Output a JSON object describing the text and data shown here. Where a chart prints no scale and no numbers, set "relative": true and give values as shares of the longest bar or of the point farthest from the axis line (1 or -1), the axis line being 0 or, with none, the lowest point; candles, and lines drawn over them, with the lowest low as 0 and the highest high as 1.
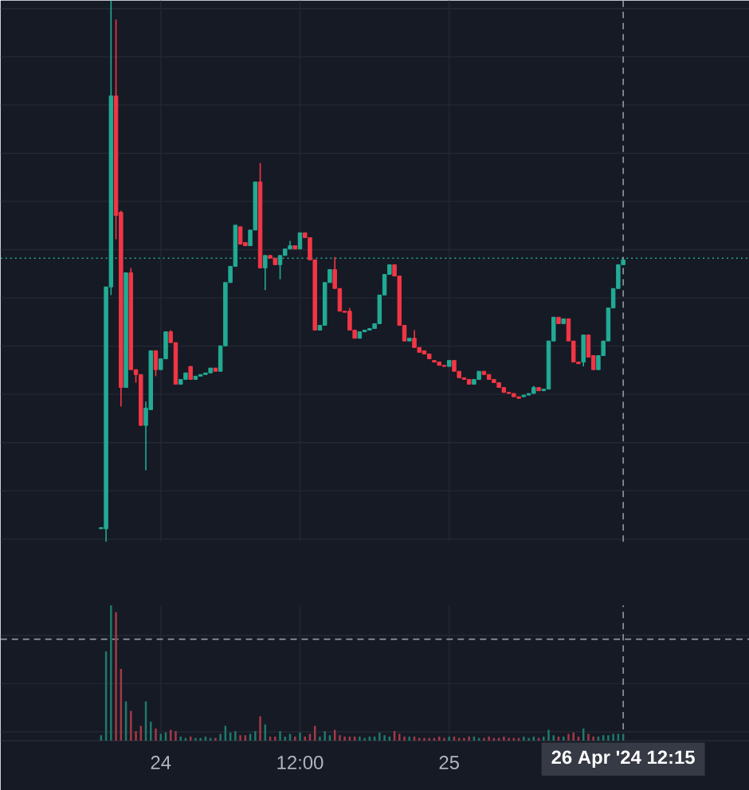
{
  "chart_data": [
    {
      "type": "candlestick",
      "relative": true,
      "tick_labels": false,
      "grid": true,
      "categories": [
        null,
        null,
        null,
        null,
        null,
        null,
        null,
        null,
        null,
        null,
        null,
        null,
        "24",
        null,
        null,
        null,
        null,
        null,
        null,
        null,
        null,
        null,
        null,
        null,
        null,
        null,
        null,
        null,
        null,
        null,
        null,
        null,
        null,
        null,
        null,
        null,
        null,
        null,
        null,
        null,
        "12:00",
        null,
        null,
        null,
        null,
        null,
        null,
        null,
        null,
        null,
        null,
        null,
        null,
        null,
        null,
        null,
        null,
        null,
        null,
        null,
        null,
        null,
        null,
        null,
        null,
        null,
        null,
        null,
        null,
        null,
        "25",
        null,
        null,
        null,
        null,
        null,
        null,
        null,
        null,
        null,
        null,
        null,
        null,
        null,
        null,
        null,
        null,
        null,
        null,
        null,
        null,
        null,
        null,
        null,
        null,
        null,
        null,
        null,
        null,
        null,
        null,
        null,
        null,
        null,
        null,
        "26 Apr '24  12:15"
      ],
      "ref_lines": [
        {
          "axis": "y",
          "value": 0.524,
          "color": "#22ab94",
          "line_style": "dotted"
        },
        {
          "axis": "x",
          "value": "26 Apr '24  12:15",
          "color": "#9598a1",
          "line_style": "dashed"
        }
      ],
      "ohlc": [
        [
          0.024,
          0.026,
          0.024,
          0.026
        ],
        [
          0.024,
          0.471,
          0.0,
          0.471
        ],
        [
          0.471,
          1.0,
          0.456,
          0.824
        ],
        [
          0.824,
          0.965,
          0.559,
          0.603
        ],
        [
          0.609,
          0.612,
          0.25,
          0.285
        ],
        [
          0.285,
          0.497,
          0.285,
          0.497
        ],
        [
          0.497,
          0.506,
          0.318,
          0.318
        ],
        [
          0.318,
          0.318,
          0.294,
          0.309
        ],
        [
          0.309,
          0.309,
          0.215,
          0.215
        ],
        [
          0.215,
          0.259,
          0.132,
          0.247
        ],
        [
          0.244,
          0.353,
          0.244,
          0.353
        ],
        [
          0.353,
          0.353,
          0.306,
          0.318
        ],
        [
          0.318,
          0.338,
          0.318,
          0.338
        ],
        [
          0.338,
          0.388,
          0.338,
          0.388
        ],
        [
          0.388,
          0.391,
          0.368,
          0.368
        ],
        [
          0.368,
          0.368,
          0.291,
          0.291
        ],
        [
          0.291,
          0.3,
          0.291,
          0.3
        ],
        [
          0.3,
          0.312,
          0.3,
          0.312
        ],
        [
          0.324,
          0.324,
          0.3,
          0.3
        ],
        [
          0.3,
          0.306,
          0.3,
          0.306
        ],
        [
          0.306,
          0.309,
          0.306,
          0.309
        ],
        [
          0.309,
          0.312,
          0.309,
          0.312
        ],
        [
          0.312,
          0.321,
          0.312,
          0.321
        ],
        [
          0.321,
          0.321,
          0.315,
          0.315
        ],
        [
          0.315,
          0.362,
          0.315,
          0.362
        ],
        [
          0.362,
          0.479,
          0.362,
          0.479
        ],
        [
          0.479,
          0.509,
          0.479,
          0.509
        ],
        [
          0.509,
          0.585,
          0.509,
          0.585
        ],
        [
          0.582,
          0.582,
          0.55,
          0.55
        ],
        [
          0.553,
          0.553,
          0.547,
          0.547
        ],
        [
          0.547,
          0.576,
          0.547,
          0.576
        ],
        [
          0.576,
          0.665,
          0.576,
          0.665
        ],
        [
          0.665,
          0.7,
          0.506,
          0.506
        ],
        [
          0.506,
          0.529,
          0.465,
          0.529
        ],
        [
          0.529,
          0.529,
          0.524,
          0.524
        ],
        [
          0.524,
          0.524,
          0.512,
          0.512
        ],
        [
          0.512,
          0.529,
          0.485,
          0.529
        ],
        [
          0.529,
          0.541,
          0.529,
          0.541
        ],
        [
          0.541,
          0.556,
          0.541,
          0.547
        ],
        [
          0.547,
          0.547,
          0.541,
          0.541
        ],
        [
          0.541,
          0.571,
          0.541,
          0.571
        ],
        [
          0.571,
          0.571,
          0.562,
          0.562
        ],
        [
          0.562,
          0.562,
          0.521,
          0.521
        ],
        [
          0.521,
          0.521,
          0.391,
          0.391
        ],
        [
          0.391,
          0.4,
          0.391,
          0.4
        ],
        [
          0.4,
          0.479,
          0.4,
          0.479
        ],
        [
          0.479,
          0.503,
          0.479,
          0.503
        ],
        [
          0.503,
          0.526,
          0.468,
          0.468
        ],
        [
          0.468,
          0.468,
          0.426,
          0.426
        ],
        [
          0.426,
          0.426,
          0.424,
          0.424
        ],
        [
          0.426,
          0.432,
          0.391,
          0.391
        ],
        [
          0.391,
          0.391,
          0.376,
          0.376
        ],
        [
          0.376,
          0.388,
          0.376,
          0.388
        ],
        [
          0.388,
          0.391,
          0.388,
          0.391
        ],
        [
          0.391,
          0.394,
          0.391,
          0.394
        ],
        [
          0.394,
          0.403,
          0.394,
          0.403
        ],
        [
          0.403,
          0.456,
          0.403,
          0.456
        ],
        [
          0.456,
          0.494,
          0.456,
          0.494
        ],
        [
          0.494,
          0.512,
          0.494,
          0.512
        ],
        [
          0.512,
          0.512,
          0.491,
          0.491
        ],
        [
          0.491,
          0.491,
          0.4,
          0.4
        ],
        [
          0.4,
          0.4,
          0.371,
          0.371
        ],
        [
          0.371,
          0.376,
          0.371,
          0.376
        ],
        [
          0.376,
          0.391,
          0.359,
          0.359
        ],
        [
          0.359,
          0.359,
          0.35,
          0.35
        ],
        [
          0.353,
          0.353,
          0.347,
          0.347
        ],
        [
          0.347,
          0.347,
          0.338,
          0.338
        ],
        [
          0.335,
          0.335,
          0.332,
          0.332
        ],
        [
          0.332,
          0.332,
          0.326,
          0.326
        ],
        [
          0.326,
          0.326,
          0.324,
          0.324
        ],
        [
          0.324,
          0.335,
          0.324,
          0.335
        ],
        [
          0.335,
          0.335,
          0.315,
          0.315
        ],
        [
          0.315,
          0.315,
          0.303,
          0.303
        ],
        [
          0.303,
          0.303,
          0.3,
          0.3
        ],
        [
          0.3,
          0.3,
          0.291,
          0.291
        ],
        [
          0.291,
          0.3,
          0.291,
          0.3
        ],
        [
          0.3,
          0.315,
          0.3,
          0.315
        ],
        [
          0.315,
          0.315,
          0.309,
          0.309
        ],
        [
          0.309,
          0.309,
          0.3,
          0.3
        ],
        [
          0.3,
          0.3,
          0.294,
          0.294
        ],
        [
          0.294,
          0.294,
          0.285,
          0.285
        ],
        [
          0.285,
          0.285,
          0.276,
          0.276
        ],
        [
          0.276,
          0.276,
          0.274,
          0.274
        ],
        [
          0.274,
          0.274,
          0.268,
          0.268
        ],
        [
          0.268,
          0.268,
          0.265,
          0.265
        ],
        [
          0.268,
          0.271,
          0.268,
          0.271
        ],
        [
          0.271,
          0.274,
          0.271,
          0.274
        ],
        [
          0.274,
          0.288,
          0.274,
          0.285
        ],
        [
          0.285,
          0.285,
          0.279,
          0.279
        ],
        [
          0.279,
          0.282,
          0.279,
          0.282
        ],
        [
          0.282,
          0.371,
          0.282,
          0.371
        ],
        [
          0.371,
          0.415,
          0.371,
          0.415
        ],
        [
          0.415,
          0.415,
          0.403,
          0.403
        ],
        [
          0.403,
          0.412,
          0.403,
          0.412
        ],
        [
          0.412,
          0.412,
          0.371,
          0.371
        ],
        [
          0.371,
          0.371,
          0.332,
          0.332
        ],
        [
          0.332,
          0.332,
          0.329,
          0.329
        ],
        [
          0.332,
          0.382,
          0.324,
          0.382
        ],
        [
          0.382,
          0.382,
          0.341,
          0.341
        ],
        [
          0.344,
          0.344,
          0.318,
          0.318
        ],
        [
          0.318,
          0.344,
          0.318,
          0.344
        ],
        [
          0.344,
          0.371,
          0.344,
          0.371
        ],
        [
          0.371,
          0.432,
          0.371,
          0.432
        ],
        [
          0.432,
          0.468,
          0.432,
          0.468
        ],
        [
          0.468,
          0.512,
          0.468,
          0.512
        ],
        [
          0.512,
          0.521,
          0.512,
          0.521
        ]
      ],
      "colors": [
        "#22ab94",
        "#22ab94",
        "#22ab94",
        "#f23645",
        "#f23645",
        "#22ab94",
        "#f23645",
        "#f23645",
        "#f23645",
        "#22ab94",
        "#22ab94",
        "#f23645",
        "#22ab94",
        "#22ab94",
        "#f23645",
        "#f23645",
        "#22ab94",
        "#22ab94",
        "#f23645",
        "#22ab94",
        "#22ab94",
        "#22ab94",
        "#22ab94",
        "#f23645",
        "#22ab94",
        "#22ab94",
        "#22ab94",
        "#22ab94",
        "#f23645",
        "#f23645",
        "#22ab94",
        "#22ab94",
        "#f23645",
        "#22ab94",
        "#f23645",
        "#f23645",
        "#22ab94",
        "#22ab94",
        "#22ab94",
        "#f23645",
        "#22ab94",
        "#f23645",
        "#f23645",
        "#f23645",
        "#22ab94",
        "#22ab94",
        "#22ab94",
        "#f23645",
        "#f23645",
        "#f23645",
        "#f23645",
        "#f23645",
        "#22ab94",
        "#22ab94",
        "#22ab94",
        "#22ab94",
        "#22ab94",
        "#22ab94",
        "#22ab94",
        "#f23645",
        "#f23645",
        "#f23645",
        "#22ab94",
        "#f23645",
        "#f23645",
        "#f23645",
        "#f23645",
        "#f23645",
        "#f23645",
        "#f23645",
        "#22ab94",
        "#f23645",
        "#f23645",
        "#f23645",
        "#f23645",
        "#22ab94",
        "#22ab94",
        "#f23645",
        "#f23645",
        "#f23645",
        "#f23645",
        "#f23645",
        "#f23645",
        "#f23645",
        "#f23645",
        "#22ab94",
        "#22ab94",
        "#22ab94",
        "#f23645",
        "#22ab94",
        "#22ab94",
        "#22ab94",
        "#f23645",
        "#22ab94",
        "#f23645",
        "#f23645",
        "#f23645",
        "#22ab94",
        "#f23645",
        "#f23645",
        "#22ab94",
        "#22ab94",
        "#22ab94",
        "#22ab94",
        "#22ab94",
        "#22ab94"
      ]
    },
    {
      "type": "bar",
      "relative": true,
      "grid": true,
      "categories": [
        null,
        null,
        null,
        null,
        null,
        null,
        null,
        null,
        null,
        null,
        null,
        null,
        "24",
        null,
        null,
        null,
        null,
        null,
        null,
        null,
        null,
        null,
        null,
        null,
        null,
        null,
        null,
        null,
        null,
        null,
        null,
        null,
        null,
        null,
        null,
        null,
        null,
        null,
        null,
        null,
        "12:00",
        null,
        null,
        null,
        null,
        null,
        null,
        null,
        null,
        null,
        null,
        null,
        null,
        null,
        null,
        null,
        null,
        null,
        null,
        null,
        null,
        null,
        null,
        null,
        null,
        null,
        null,
        null,
        null,
        null,
        "25",
        null,
        null,
        null,
        null,
        null,
        null,
        null,
        null,
        null,
        null,
        null,
        null,
        null,
        null,
        null,
        null,
        null,
        null,
        null,
        null,
        null,
        null,
        null,
        null,
        null,
        null,
        null,
        null,
        null,
        null,
        null,
        null,
        null,
        null,
        "26 Apr '24  12:15"
      ],
      "ref_lines": [
        {
          "axis": "x",
          "value": "26 Apr '24  12:15",
          "color": "#9598a1",
          "line_style": "dashed"
        },
        {
          "axis": "y",
          "value": 0.75,
          "color": "#9598a1",
          "line_style": "dashed"
        }
      ],
      "values": [
        0.04,
        0.66,
        1,
        0.95,
        0.53,
        0.29,
        0.22,
        0.07,
        0.11,
        0.29,
        0.14,
        0.09,
        0.05,
        0.06,
        0.08,
        0.07,
        0.03,
        0.02,
        0.03,
        0.02,
        0.02,
        0.03,
        0.02,
        0.02,
        0.05,
        0.11,
        0.06,
        0.07,
        0.04,
        0.04,
        0.05,
        0.07,
        0.18,
        0.12,
        0.03,
        0.03,
        0.07,
        0.03,
        0.05,
        0.03,
        0.06,
        0.03,
        0.05,
        0.11,
        0.03,
        0.07,
        0.04,
        0.08,
        0.04,
        0.03,
        0.03,
        0.03,
        0.03,
        0.02,
        0.03,
        0.03,
        0.06,
        0.04,
        0.03,
        0.07,
        0.05,
        0.03,
        0.03,
        0.03,
        0.02,
        0.02,
        0.02,
        0.02,
        0.03,
        0.02,
        0.03,
        0.03,
        0.02,
        0.02,
        0.03,
        0.03,
        0.02,
        0.02,
        0.03,
        0.02,
        0.02,
        0.03,
        0.02,
        0.02,
        0.02,
        0.03,
        0.02,
        0.03,
        0.02,
        0.03,
        0.08,
        0.04,
        0.03,
        0.03,
        0.05,
        0.06,
        0.03,
        0.09,
        0.05,
        0.03,
        0.03,
        0.04,
        0.04,
        0.05,
        0.05,
        0.05
      ],
      "colors": [
        "#1e7a6c",
        "#1e7a6c",
        "#1e7a6c",
        "#a23a46",
        "#a23a46",
        "#1e7a6c",
        "#a23a46",
        "#a23a46",
        "#a23a46",
        "#1e7a6c",
        "#1e7a6c",
        "#a23a46",
        "#1e7a6c",
        "#1e7a6c",
        "#a23a46",
        "#a23a46",
        "#1e7a6c",
        "#1e7a6c",
        "#a23a46",
        "#1e7a6c",
        "#1e7a6c",
        "#1e7a6c",
        "#1e7a6c",
        "#a23a46",
        "#1e7a6c",
        "#1e7a6c",
        "#1e7a6c",
        "#1e7a6c",
        "#a23a46",
        "#a23a46",
        "#1e7a6c",
        "#1e7a6c",
        "#a23a46",
        "#1e7a6c",
        "#a23a46",
        "#a23a46",
        "#1e7a6c",
        "#1e7a6c",
        "#1e7a6c",
        "#a23a46",
        "#1e7a6c",
        "#a23a46",
        "#a23a46",
        "#a23a46",
        "#1e7a6c",
        "#1e7a6c",
        "#1e7a6c",
        "#a23a46",
        "#a23a46",
        "#a23a46",
        "#a23a46",
        "#a23a46",
        "#1e7a6c",
        "#1e7a6c",
        "#1e7a6c",
        "#1e7a6c",
        "#1e7a6c",
        "#1e7a6c",
        "#1e7a6c",
        "#a23a46",
        "#a23a46",
        "#a23a46",
        "#1e7a6c",
        "#a23a46",
        "#a23a46",
        "#a23a46",
        "#a23a46",
        "#a23a46",
        "#a23a46",
        "#a23a46",
        "#1e7a6c",
        "#a23a46",
        "#a23a46",
        "#a23a46",
        "#a23a46",
        "#1e7a6c",
        "#1e7a6c",
        "#a23a46",
        "#a23a46",
        "#a23a46",
        "#a23a46",
        "#a23a46",
        "#a23a46",
        "#a23a46",
        "#a23a46",
        "#1e7a6c",
        "#1e7a6c",
        "#1e7a6c",
        "#a23a46",
        "#1e7a6c",
        "#1e7a6c",
        "#1e7a6c",
        "#a23a46",
        "#1e7a6c",
        "#a23a46",
        "#a23a46",
        "#a23a46",
        "#1e7a6c",
        "#a23a46",
        "#a23a46",
        "#1e7a6c",
        "#1e7a6c",
        "#1e7a6c",
        "#1e7a6c",
        "#1e7a6c",
        "#1e7a6c"
      ]
    }
  ]
}
